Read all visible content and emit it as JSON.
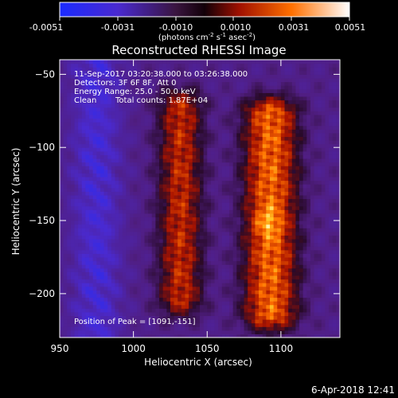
{
  "colorbar": {
    "ticks": [
      "-0.0051",
      "-0.0031",
      "-0.0010",
      "0.0010",
      "0.0031",
      "0.0051"
    ],
    "units_base": "(photons cm",
    "units_exp1": "-2",
    "units_mid": " s",
    "units_exp2": "-1",
    "units_mid2": " asec",
    "units_exp3": "-2",
    "units_end": ")"
  },
  "title": "Reconstructed RHESSI Image",
  "annotation": {
    "line1": "11-Sep-2017 03:20:38.000 to 03:26:38.000",
    "line2": "Detectors: 3F 6F 8F, Att 0",
    "line3": "Energy Range: 25.0 - 50.0 keV",
    "line4_a": "Clean",
    "line4_b": "Total counts: 1.87E+04",
    "peak": "Position of Peak = [1091,-151]"
  },
  "footer_timestamp": "6-Apr-2018 12:41",
  "colors": {
    "background": "#000000",
    "low": "#2a1fcf",
    "mid_low": "#5a2a9a",
    "zero": "#1a0a1a",
    "mid_high": "#c02000",
    "high": "#ff9a00",
    "peak": "#ffffa0"
  },
  "chart_data": {
    "type": "heatmap",
    "title": "Reconstructed RHESSI Image",
    "xlabel": "Heliocentric X (arcsec)",
    "ylabel": "Heliocentric Y (arcsec)",
    "xlim": [
      950,
      1140
    ],
    "ylim": [
      -230,
      -40
    ],
    "x_ticks": [
      950,
      1000,
      1050,
      1100
    ],
    "y_ticks": [
      -50,
      -100,
      -150,
      -200
    ],
    "colorbar_range": [
      -0.0051,
      0.0051
    ],
    "peak_position": [
      1091,
      -151
    ],
    "peak_value": 0.0051,
    "source_columns": [
      {
        "x": 1032,
        "y_from": -60,
        "y_to": -215,
        "level": 0.0036
      },
      {
        "x": 1093,
        "y_from": -65,
        "y_to": -225,
        "level": 0.0051
      }
    ],
    "negative_region": {
      "x": 975,
      "y_from": -55,
      "y_to": -225,
      "level": -0.0045
    }
  }
}
